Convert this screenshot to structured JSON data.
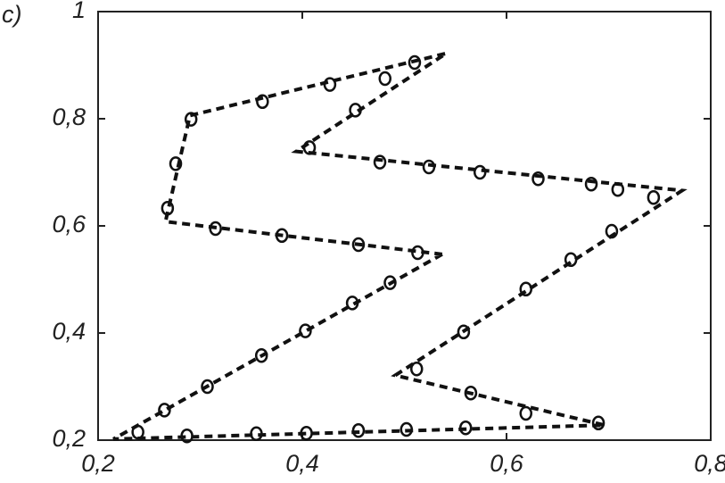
{
  "chart_data": {
    "type": "scatter",
    "annotation": "c)",
    "xlim": [
      0.2,
      0.8
    ],
    "ylim": [
      0.2,
      1
    ],
    "xticks": [
      {
        "value": 0.2,
        "label": "0,2"
      },
      {
        "value": 0.4,
        "label": "0,4"
      },
      {
        "value": 0.6,
        "label": "0,6"
      },
      {
        "value": 0.8,
        "label": "0,8"
      }
    ],
    "yticks": [
      {
        "value": 0.2,
        "label": "0,2"
      },
      {
        "value": 0.4,
        "label": "0,4"
      },
      {
        "value": 0.6,
        "label": "0,6"
      },
      {
        "value": 0.8,
        "label": "0,8"
      },
      1
    ],
    "series": [
      {
        "mode": "dashed-line",
        "color": "#111111",
        "x": [
          0.537,
          0.215,
          0.696,
          0.491,
          0.772,
          0.394,
          0.541,
          0.29,
          0.266,
          0.537
        ],
        "y": [
          0.547,
          0.202,
          0.228,
          0.321,
          0.666,
          0.739,
          0.922,
          0.806,
          0.608,
          0.547
        ]
      },
      {
        "mode": "markers",
        "color": "#111111",
        "x": [
          0.239,
          0.287,
          0.355,
          0.404,
          0.455,
          0.502,
          0.56,
          0.619,
          0.69,
          0.565,
          0.512,
          0.558,
          0.619,
          0.663,
          0.703,
          0.744,
          0.709,
          0.683,
          0.631,
          0.574,
          0.524,
          0.476,
          0.407,
          0.452,
          0.481,
          0.51,
          0.427,
          0.361,
          0.291,
          0.276,
          0.268,
          0.315,
          0.38,
          0.455,
          0.513,
          0.486,
          0.449,
          0.403,
          0.36,
          0.307,
          0.265
        ],
        "y": [
          0.215,
          0.208,
          0.212,
          0.213,
          0.218,
          0.22,
          0.223,
          0.25,
          0.232,
          0.288,
          0.333,
          0.402,
          0.482,
          0.537,
          0.59,
          0.653,
          0.668,
          0.678,
          0.688,
          0.7,
          0.71,
          0.719,
          0.746,
          0.816,
          0.875,
          0.905,
          0.864,
          0.832,
          0.799,
          0.716,
          0.633,
          0.595,
          0.582,
          0.565,
          0.55,
          0.494,
          0.456,
          0.404,
          0.358,
          0.3,
          0.256
        ]
      }
    ]
  }
}
